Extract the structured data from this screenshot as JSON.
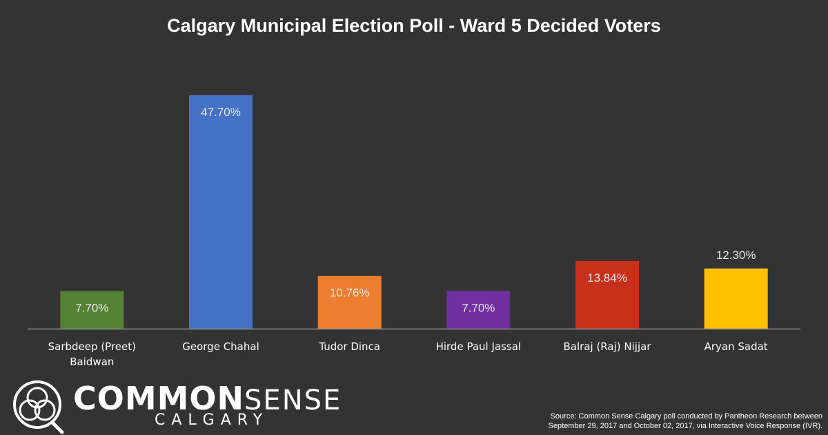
{
  "chart_data": {
    "type": "bar",
    "title": "Calgary Municipal Election Poll - Ward 5 Decided Voters",
    "categories": [
      "Sarbdeep (Preet) Baidwan",
      "George Chahal",
      "Tudor Dinca",
      "Hirde Paul Jassal",
      "Balraj (Raj) Nijjar",
      "Aryan Sadat"
    ],
    "category_lines": [
      [
        "Sarbdeep (Preet)",
        "Baidwan"
      ],
      [
        "George Chahal"
      ],
      [
        "Tudor Dinca"
      ],
      [
        "Hirde Paul Jassal"
      ],
      [
        "Balraj (Raj) Nijjar"
      ],
      [
        "Aryan Sadat"
      ]
    ],
    "values": [
      7.7,
      47.7,
      10.76,
      7.7,
      13.84,
      12.3
    ],
    "value_labels": [
      "7.70%",
      "47.70%",
      "10.76%",
      "7.70%",
      "13.84%",
      "12.30%"
    ],
    "colors": [
      "#548235",
      "#4472C4",
      "#ED7D31",
      "#7030A0",
      "#C9301C",
      "#FFC000"
    ],
    "label_inside": [
      true,
      true,
      true,
      true,
      true,
      false
    ],
    "ylim": [
      0,
      55
    ],
    "grid": false,
    "xlabel": "",
    "ylabel": ""
  },
  "logo": {
    "word_bold": "COMMON",
    "word_light": "SENSE",
    "sub": "CALGARY"
  },
  "source": {
    "line1": "Source: Common Sense Calgary poll conducted by Pantheon Research between",
    "line2": "September 29, 2017 and October 02, 2017, via Interactive Voice Response (IVR)."
  }
}
